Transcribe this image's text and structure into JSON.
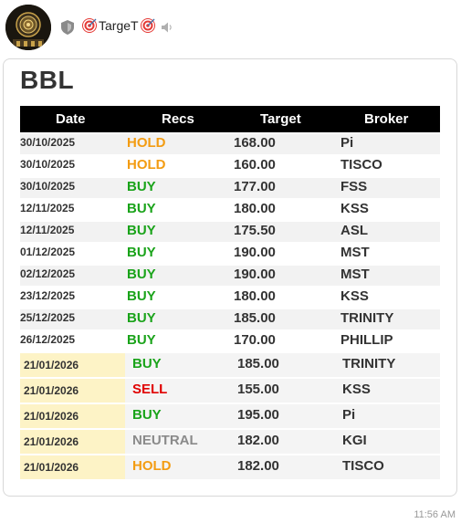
{
  "channel": {
    "name": "TargeT",
    "time": "11:56 AM"
  },
  "colors": {
    "HOLD": "#f39c12",
    "BUY": "#1aa31a",
    "SELL": "#e00000",
    "NEUTRAL": "#8a8a8a"
  },
  "card": {
    "title": "BBL",
    "headers": {
      "date": "Date",
      "recs": "Recs",
      "target": "Target",
      "broker": "Broker"
    },
    "rows": [
      {
        "date": "30/10/2025",
        "rec": "HOLD",
        "target": "168.00",
        "broker": "Pi"
      },
      {
        "date": "30/10/2025",
        "rec": "HOLD",
        "target": "160.00",
        "broker": "TISCO"
      },
      {
        "date": "30/10/2025",
        "rec": "BUY",
        "target": "177.00",
        "broker": "FSS"
      },
      {
        "date": "12/11/2025",
        "rec": "BUY",
        "target": "180.00",
        "broker": "KSS"
      },
      {
        "date": "12/11/2025",
        "rec": "BUY",
        "target": "175.50",
        "broker": "ASL"
      },
      {
        "date": "01/12/2025",
        "rec": "BUY",
        "target": "190.00",
        "broker": "MST"
      },
      {
        "date": "02/12/2025",
        "rec": "BUY",
        "target": "190.00",
        "broker": "MST"
      },
      {
        "date": "23/12/2025",
        "rec": "BUY",
        "target": "180.00",
        "broker": "KSS"
      },
      {
        "date": "25/12/2025",
        "rec": "BUY",
        "target": "185.00",
        "broker": "TRINITY"
      },
      {
        "date": "26/12/2025",
        "rec": "BUY",
        "target": "170.00",
        "broker": "PHILLIP"
      }
    ],
    "new_rows": [
      {
        "date": "21/01/2026",
        "rec": "BUY",
        "target": "185.00",
        "broker": "TRINITY"
      },
      {
        "date": "21/01/2026",
        "rec": "SELL",
        "target": "155.00",
        "broker": "KSS"
      },
      {
        "date": "21/01/2026",
        "rec": "BUY",
        "target": "195.00",
        "broker": "Pi"
      },
      {
        "date": "21/01/2026",
        "rec": "NEUTRAL",
        "target": "182.00",
        "broker": "KGI"
      },
      {
        "date": "21/01/2026",
        "rec": "HOLD",
        "target": "182.00",
        "broker": "TISCO"
      }
    ]
  }
}
